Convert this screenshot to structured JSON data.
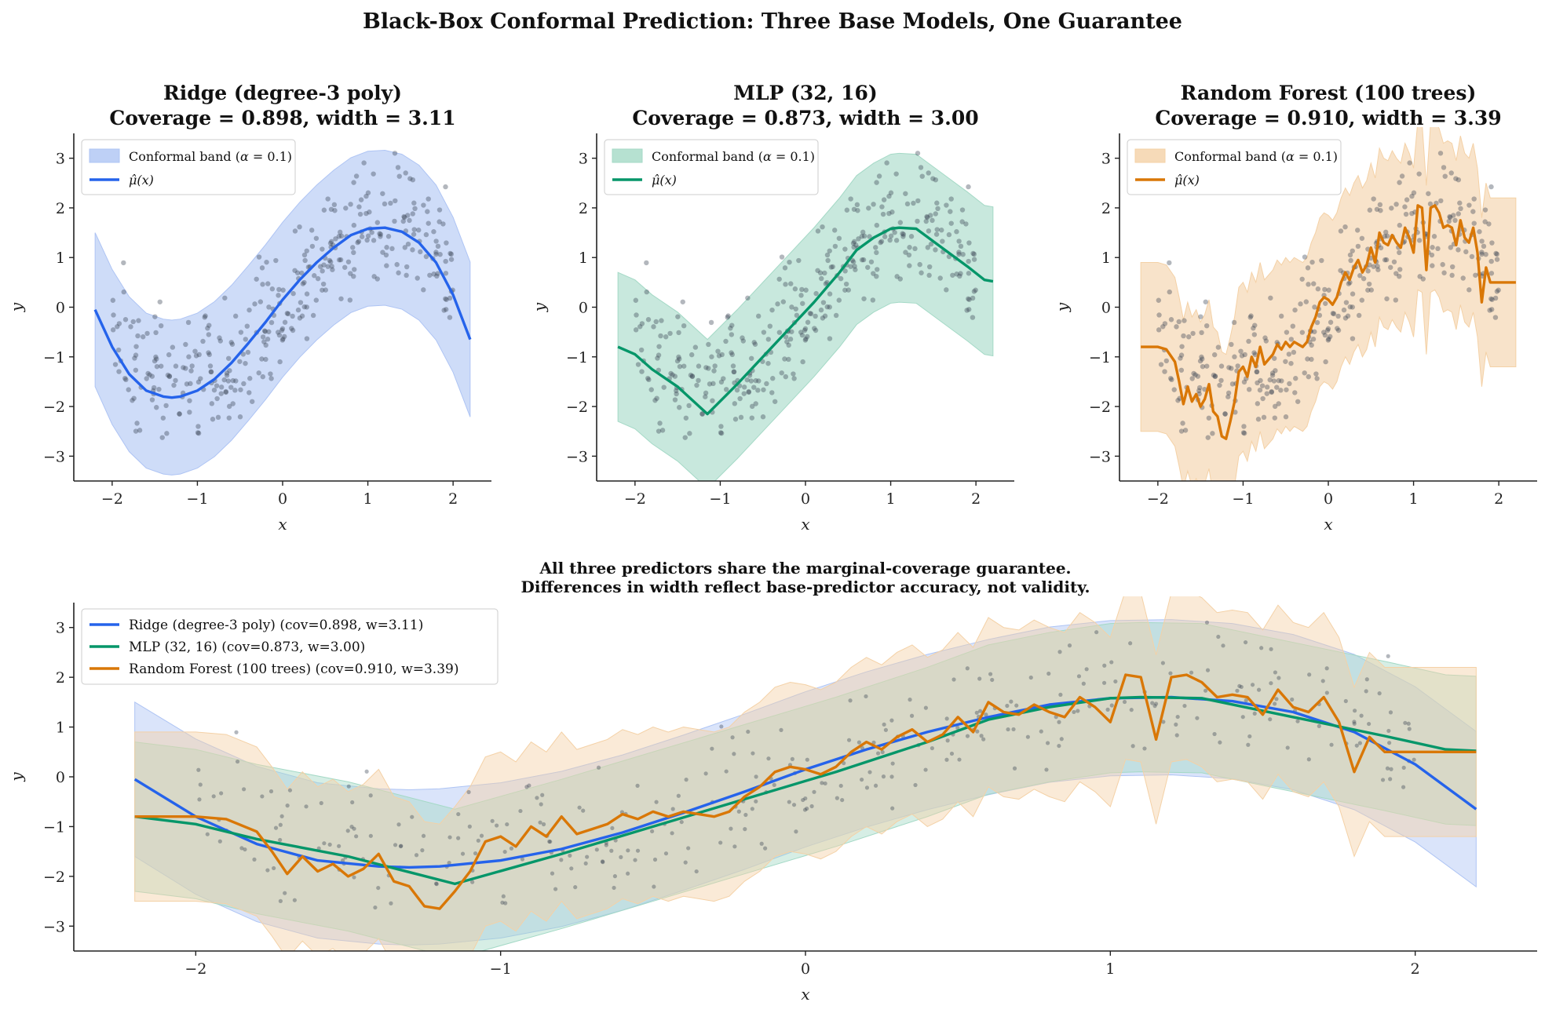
{
  "figure": {
    "suptitle": "Black-Box Conformal Prediction: Three Base Models, One Guarantee"
  },
  "colors": {
    "ridge": "#2563eb",
    "mlp": "#059669",
    "forest": "#d97706",
    "points": "#374151",
    "ridge_band": "#aec4f4",
    "mlp_band": "#a4d9c6",
    "forest_band": "#f4d1a6"
  },
  "chart_data": [
    {
      "type": "line",
      "title": "Ridge (degree-3 poly)\nCoverage = 0.898,  width = 3.11",
      "xlabel": "x",
      "ylabel": "y",
      "xlim": [
        -2.45,
        2.45
      ],
      "ylim": [
        -3.5,
        3.5
      ],
      "xticks": [
        -2,
        -1,
        0,
        1,
        2
      ],
      "yticks": [
        -3,
        -2,
        -1,
        0,
        1,
        2,
        3
      ],
      "legend_position": "upper-left",
      "legend": [
        "Conformal band (α = 0.1)",
        "μ̂(x)"
      ],
      "alpha": 0.1,
      "coverage": 0.898,
      "band_width": 3.11,
      "series": [
        {
          "name": "μ̂(x)",
          "color_key": "ridge",
          "x": [
            -2.2,
            -2.0,
            -1.8,
            -1.6,
            -1.4,
            -1.3,
            -1.2,
            -1.0,
            -0.8,
            -0.6,
            -0.4,
            -0.2,
            0.0,
            0.2,
            0.4,
            0.6,
            0.8,
            1.0,
            1.2,
            1.4,
            1.6,
            1.8,
            2.0,
            2.2
          ],
          "y": [
            -0.05,
            -0.8,
            -1.35,
            -1.68,
            -1.8,
            -1.82,
            -1.8,
            -1.68,
            -1.45,
            -1.12,
            -0.72,
            -0.3,
            0.15,
            0.55,
            0.9,
            1.2,
            1.45,
            1.58,
            1.6,
            1.52,
            1.3,
            0.9,
            0.25,
            -0.65
          ],
          "band_lower": [
            -1.6,
            -2.36,
            -2.91,
            -3.24,
            -3.36,
            -3.38,
            -3.36,
            -3.24,
            -3.01,
            -2.68,
            -2.28,
            -1.86,
            -1.41,
            -1.01,
            -0.66,
            -0.36,
            -0.11,
            0.02,
            0.04,
            -0.04,
            -0.26,
            -0.66,
            -1.31,
            -2.21
          ],
          "band_upper": [
            1.5,
            0.76,
            0.21,
            -0.12,
            -0.24,
            -0.26,
            -0.24,
            -0.12,
            0.11,
            0.44,
            0.84,
            1.26,
            1.71,
            2.11,
            2.46,
            2.76,
            3.01,
            3.14,
            3.16,
            3.08,
            2.86,
            2.46,
            1.81,
            0.91
          ]
        }
      ]
    },
    {
      "type": "line",
      "title": "MLP (32, 16)\nCoverage = 0.873,  width = 3.00",
      "xlabel": "x",
      "ylabel": "y",
      "xlim": [
        -2.45,
        2.45
      ],
      "ylim": [
        -3.5,
        3.5
      ],
      "xticks": [
        -2,
        -1,
        0,
        1,
        2
      ],
      "yticks": [
        -3,
        -2,
        -1,
        0,
        1,
        2,
        3
      ],
      "legend_position": "upper-left",
      "legend": [
        "Conformal band (α = 0.1)",
        "μ̂(x)"
      ],
      "alpha": 0.1,
      "coverage": 0.873,
      "band_width": 3.0,
      "series": [
        {
          "name": "μ̂(x)",
          "color_key": "mlp",
          "x": [
            -2.2,
            -2.0,
            -1.8,
            -1.5,
            -1.15,
            -0.8,
            -0.5,
            -0.2,
            0.1,
            0.4,
            0.6,
            0.8,
            1.0,
            1.1,
            1.3,
            1.6,
            1.9,
            2.1,
            2.2
          ],
          "y": [
            -0.8,
            -0.95,
            -1.25,
            -1.6,
            -2.15,
            -1.55,
            -1.0,
            -0.45,
            0.1,
            0.7,
            1.15,
            1.4,
            1.58,
            1.6,
            1.58,
            1.2,
            0.82,
            0.55,
            0.52
          ],
          "band_lower": [
            -2.3,
            -2.45,
            -2.75,
            -3.1,
            -3.65,
            -3.05,
            -2.5,
            -1.95,
            -1.4,
            -0.8,
            -0.35,
            -0.1,
            0.08,
            0.1,
            0.08,
            -0.3,
            -0.68,
            -0.95,
            -0.98
          ],
          "band_upper": [
            0.7,
            0.55,
            0.25,
            -0.1,
            -0.65,
            -0.05,
            0.5,
            1.05,
            1.6,
            2.2,
            2.65,
            2.9,
            3.08,
            3.1,
            3.08,
            2.7,
            2.32,
            2.05,
            2.02
          ]
        }
      ]
    },
    {
      "type": "line",
      "title": "Random Forest (100 trees)\nCoverage = 0.910,  width = 3.39",
      "xlabel": "x",
      "ylabel": "y",
      "xlim": [
        -2.45,
        2.45
      ],
      "ylim": [
        -3.5,
        3.5
      ],
      "xticks": [
        -2,
        -1,
        0,
        1,
        2
      ],
      "yticks": [
        -3,
        -2,
        -1,
        0,
        1,
        2,
        3
      ],
      "legend_position": "upper-left",
      "legend": [
        "Conformal band (α = 0.1)",
        "μ̂(x)"
      ],
      "alpha": 0.1,
      "coverage": 0.91,
      "band_width": 3.39,
      "series": [
        {
          "name": "μ̂(x)",
          "color_key": "forest",
          "x": [
            -2.2,
            -2.0,
            -1.9,
            -1.8,
            -1.75,
            -1.7,
            -1.65,
            -1.6,
            -1.55,
            -1.5,
            -1.45,
            -1.4,
            -1.35,
            -1.3,
            -1.25,
            -1.2,
            -1.15,
            -1.1,
            -1.05,
            -1.0,
            -0.95,
            -0.9,
            -0.85,
            -0.8,
            -0.75,
            -0.7,
            -0.65,
            -0.6,
            -0.55,
            -0.5,
            -0.45,
            -0.4,
            -0.35,
            -0.3,
            -0.25,
            -0.2,
            -0.15,
            -0.1,
            -0.05,
            0.0,
            0.05,
            0.1,
            0.15,
            0.2,
            0.25,
            0.3,
            0.35,
            0.4,
            0.45,
            0.5,
            0.55,
            0.6,
            0.65,
            0.7,
            0.75,
            0.8,
            0.85,
            0.9,
            0.95,
            1.0,
            1.05,
            1.1,
            1.15,
            1.2,
            1.25,
            1.3,
            1.35,
            1.4,
            1.45,
            1.5,
            1.55,
            1.6,
            1.65,
            1.7,
            1.75,
            1.8,
            1.85,
            1.9,
            2.0,
            2.2
          ],
          "y": [
            -0.8,
            -0.8,
            -0.85,
            -1.1,
            -1.5,
            -1.95,
            -1.6,
            -1.9,
            -1.75,
            -2.0,
            -1.85,
            -1.55,
            -2.1,
            -2.2,
            -2.6,
            -2.65,
            -2.3,
            -1.9,
            -1.3,
            -1.2,
            -1.4,
            -1.0,
            -1.2,
            -0.8,
            -1.15,
            -1.05,
            -0.95,
            -0.75,
            -0.85,
            -0.7,
            -0.8,
            -0.7,
            -0.75,
            -0.8,
            -0.7,
            -0.4,
            -0.2,
            0.1,
            0.2,
            0.15,
            0.05,
            0.2,
            0.5,
            0.7,
            0.55,
            0.8,
            0.95,
            0.7,
            0.85,
            1.2,
            0.9,
            1.5,
            1.3,
            1.25,
            1.45,
            1.3,
            1.2,
            1.6,
            1.4,
            1.1,
            2.05,
            2.0,
            0.75,
            2.0,
            2.05,
            1.9,
            1.6,
            1.65,
            1.6,
            1.25,
            1.75,
            1.4,
            1.3,
            1.6,
            1.1,
            0.1,
            0.8,
            0.5,
            0.5,
            0.5
          ],
          "band_lower": [
            -2.5,
            -2.5,
            -2.55,
            -2.8,
            -3.2,
            -3.65,
            -3.3,
            -3.6,
            -3.45,
            -3.7,
            -3.55,
            -3.25,
            -3.8,
            -3.9,
            -4.3,
            -4.35,
            -4.0,
            -3.6,
            -3.0,
            -2.9,
            -3.1,
            -2.7,
            -2.9,
            -2.5,
            -2.85,
            -2.75,
            -2.65,
            -2.45,
            -2.55,
            -2.4,
            -2.5,
            -2.4,
            -2.45,
            -2.5,
            -2.4,
            -2.1,
            -1.9,
            -1.6,
            -1.5,
            -1.55,
            -1.65,
            -1.5,
            -1.2,
            -1.0,
            -1.15,
            -0.9,
            -0.75,
            -1.0,
            -0.85,
            -0.5,
            -0.8,
            -0.2,
            -0.4,
            -0.45,
            -0.25,
            -0.4,
            -0.5,
            -0.1,
            -0.3,
            -0.6,
            0.35,
            0.3,
            -0.95,
            0.3,
            0.35,
            0.2,
            -0.1,
            -0.05,
            -0.1,
            -0.45,
            0.05,
            -0.3,
            -0.4,
            -0.1,
            -0.6,
            -1.6,
            -0.9,
            -1.2,
            -1.2,
            -1.2
          ],
          "band_upper": [
            0.9,
            0.9,
            0.85,
            0.6,
            0.2,
            -0.25,
            0.1,
            -0.2,
            -0.05,
            -0.3,
            -0.15,
            0.15,
            -0.4,
            -0.5,
            -0.9,
            -0.95,
            -0.6,
            -0.2,
            0.4,
            0.5,
            0.3,
            0.7,
            0.5,
            0.9,
            0.55,
            0.65,
            0.75,
            0.95,
            0.85,
            1.0,
            0.9,
            1.0,
            0.95,
            0.9,
            1.0,
            1.3,
            1.5,
            1.8,
            1.9,
            1.85,
            1.75,
            1.9,
            2.2,
            2.4,
            2.25,
            2.5,
            2.65,
            2.4,
            2.55,
            2.9,
            2.6,
            3.2,
            3.0,
            2.95,
            3.15,
            3.0,
            2.9,
            3.3,
            3.1,
            2.8,
            3.75,
            3.7,
            2.45,
            3.7,
            3.75,
            3.6,
            3.3,
            3.35,
            3.3,
            2.95,
            3.45,
            3.1,
            3.0,
            3.3,
            2.8,
            1.8,
            2.5,
            2.2,
            2.2,
            2.2
          ]
        }
      ]
    },
    {
      "type": "line",
      "title": "All three predictors share the marginal-coverage guarantee.\nDifferences in width reflect base-predictor accuracy, not validity.",
      "xlabel": "x",
      "ylabel": "y",
      "xlim": [
        -2.4,
        2.4
      ],
      "ylim": [
        -3.5,
        3.5
      ],
      "xticks": [
        -2,
        -1,
        0,
        1,
        2
      ],
      "yticks": [
        -3,
        -2,
        -1,
        0,
        1,
        2,
        3
      ],
      "legend_position": "upper-left",
      "legend": [
        "Ridge (degree-3 poly) (cov=0.898, w=3.11)",
        "MLP (32, 16) (cov=0.873, w=3.00)",
        "Random Forest (100 trees) (cov=0.910, w=3.39)"
      ],
      "series": [
        {
          "name": "Ridge (degree-3 poly) (cov=0.898, w=3.11)",
          "ref": 0
        },
        {
          "name": "MLP (32, 16) (cov=0.873, w=3.00)",
          "ref": 1
        },
        {
          "name": "Random Forest (100 trees) (cov=0.910, w=3.39)",
          "ref": 2
        }
      ]
    }
  ]
}
